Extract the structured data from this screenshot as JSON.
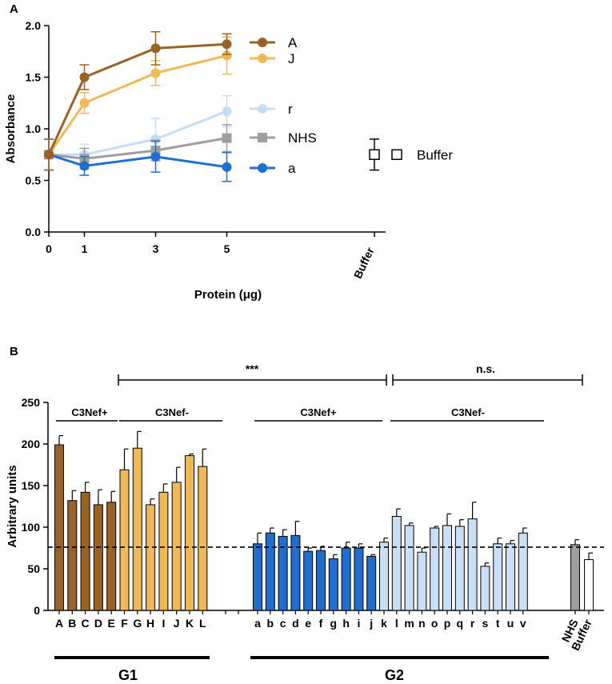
{
  "colors": {
    "A": "#9a6324",
    "J": "#f0b955",
    "r": "#c5ddf5",
    "NHS": "#9e9e9e",
    "a": "#1f6fd0",
    "g2_plus": "#1f6fd0",
    "g2_minus": "#c9dff5",
    "buffer": "#ffffff",
    "ink": "#000000"
  },
  "chart_data": [
    {
      "type": "line",
      "panel_label": "A",
      "xlabel": "Protein (μg)",
      "ylabel": "Absorbance",
      "x_ticks": [
        "0",
        "1",
        "3",
        "5"
      ],
      "y_ticks": [
        "0.0",
        "0.5",
        "1.0",
        "1.5",
        "2.0"
      ],
      "ylim": [
        0,
        2.0
      ],
      "extra_category_label": "Buffer",
      "series": [
        {
          "name": "A",
          "marker": "circle",
          "color_key": "A",
          "x": [
            0,
            1,
            3,
            5
          ],
          "y": [
            0.75,
            1.5,
            1.78,
            1.82
          ],
          "err": [
            0.15,
            0.12,
            0.16,
            0.1
          ]
        },
        {
          "name": "J",
          "marker": "circle",
          "color_key": "J",
          "x": [
            0,
            1,
            3,
            5
          ],
          "y": [
            0.75,
            1.25,
            1.54,
            1.71
          ],
          "err": [
            0.15,
            0.1,
            0.12,
            0.18
          ]
        },
        {
          "name": "r",
          "marker": "circle",
          "color_key": "r",
          "x": [
            0,
            1,
            3,
            5
          ],
          "y": [
            0.75,
            0.75,
            0.9,
            1.17
          ],
          "err": [
            0.15,
            0.1,
            0.2,
            0.15
          ]
        },
        {
          "name": "NHS",
          "marker": "square",
          "color_key": "NHS",
          "x": [
            0,
            1,
            3,
            5
          ],
          "y": [
            0.75,
            0.71,
            0.79,
            0.91
          ],
          "err": [
            0.15,
            0.1,
            0.1,
            0.13
          ]
        },
        {
          "name": "a",
          "marker": "circle",
          "color_key": "a",
          "x": [
            0,
            1,
            3,
            5
          ],
          "y": [
            0.75,
            0.64,
            0.73,
            0.63
          ],
          "err": [
            0.15,
            0.09,
            0.15,
            0.14
          ]
        }
      ],
      "buffer_point": {
        "name": "Buffer",
        "y": 0.75,
        "err": 0.15,
        "marker": "open-square"
      }
    },
    {
      "type": "bar",
      "panel_label": "B",
      "ylabel": "Arbitrary units",
      "y_ticks": [
        "0",
        "50",
        "100",
        "150",
        "200",
        "250"
      ],
      "ylim": [
        0,
        250
      ],
      "reference_line": 76,
      "groups": [
        {
          "name": "G1",
          "subgroups": [
            {
              "name": "C3Nef+",
              "color_key": "A",
              "categories": [
                "A",
                "B",
                "C",
                "D",
                "E"
              ],
              "values": [
                199,
                132,
                142,
                127,
                130
              ],
              "errors": [
                11,
                12,
                12,
                18,
                13
              ]
            },
            {
              "name": "C3Nef-",
              "color_key": "J",
              "categories": [
                "F",
                "G",
                "H",
                "I",
                "J",
                "K",
                "L"
              ],
              "values": [
                169,
                195,
                127,
                142,
                154,
                186,
                173
              ],
              "errors": [
                25,
                20,
                7,
                10,
                18,
                2,
                21
              ]
            }
          ]
        },
        {
          "name": "G2",
          "subgroups": [
            {
              "name": "C3Nef+",
              "color_key": "g2_plus",
              "categories": [
                "a",
                "b",
                "c",
                "d",
                "e",
                "f",
                "g",
                "h",
                "i",
                "j"
              ],
              "values": [
                80,
                93,
                89,
                90,
                71,
                72,
                62,
                75,
                75,
                65
              ],
              "errors": [
                13,
                6,
                8,
                17,
                4,
                5,
                5,
                7,
                5,
                2
              ]
            },
            {
              "name": "C3Nef-",
              "color_key": "g2_minus",
              "categories": [
                "k",
                "l",
                "m",
                "n",
                "o",
                "p",
                "q",
                "r",
                "s",
                "t",
                "u",
                "v"
              ],
              "values": [
                82,
                113,
                102,
                70,
                99,
                102,
                101,
                110,
                53,
                80,
                80,
                93
              ],
              "errors": [
                5,
                9,
                3,
                5,
                2,
                14,
                8,
                20,
                4,
                7,
                4,
                6
              ]
            }
          ]
        }
      ],
      "controls": [
        {
          "name": "NHS",
          "value": 79,
          "error": 6,
          "color_key": "NHS"
        },
        {
          "name": "Buffer",
          "value": 61,
          "error": 8,
          "color_key": "buffer"
        }
      ],
      "significance": [
        {
          "label": "***",
          "from": "G1",
          "to": "G2"
        },
        {
          "label": "n.s.",
          "from": "G2",
          "to": "NHS"
        }
      ]
    }
  ]
}
